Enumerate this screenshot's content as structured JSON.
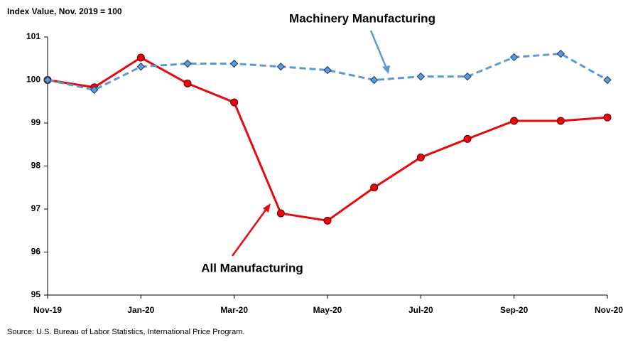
{
  "chart_data": {
    "type": "line",
    "y_axis_title": "Index Value, Nov. 2019 = 100",
    "categories": [
      "Nov-19",
      null,
      "Jan-20",
      null,
      "Mar-20",
      null,
      "May-20",
      null,
      "Jul-20",
      null,
      "Sep-20",
      null,
      "Nov-20"
    ],
    "series": [
      {
        "name": "All Manufacturing",
        "color": "#e8090f",
        "marker": "circle",
        "dashed": false,
        "values": [
          100.0,
          99.83,
          100.52,
          99.92,
          99.48,
          96.9,
          96.73,
          97.5,
          98.2,
          98.63,
          99.05,
          99.05,
          99.13
        ]
      },
      {
        "name": "Machinery Manufacturing",
        "color": "#5b9bd5",
        "marker": "diamond",
        "dashed": true,
        "values": [
          100.0,
          99.77,
          100.31,
          100.38,
          100.38,
          100.31,
          100.23,
          100.0,
          100.08,
          100.08,
          100.53,
          100.61,
          100.0
        ]
      }
    ],
    "ylim": [
      95,
      101
    ],
    "yticks": [
      95,
      96,
      97,
      98,
      99,
      100,
      101
    ],
    "grid": false,
    "source": "Source: U.S. Bureau of Labor Statistics, International Price Program."
  }
}
